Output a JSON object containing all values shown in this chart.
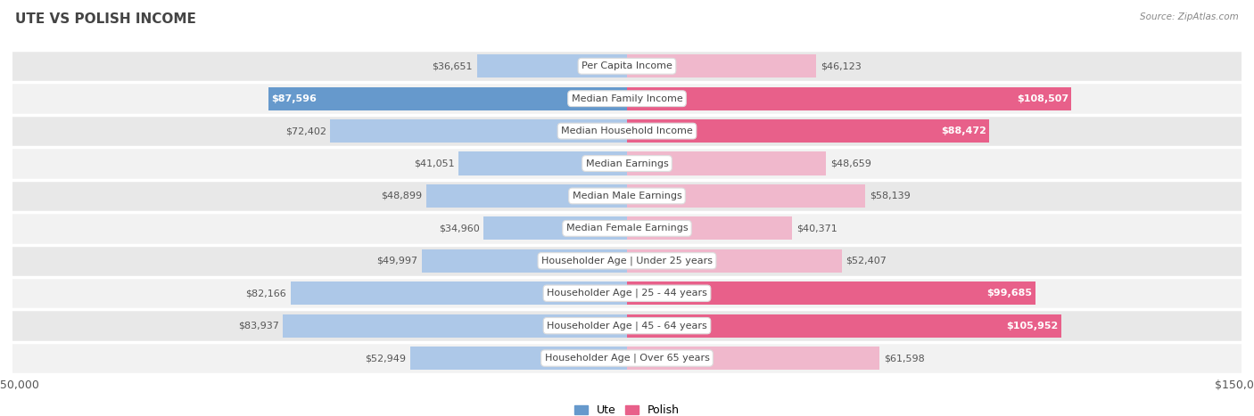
{
  "title": "UTE VS POLISH INCOME",
  "source": "Source: ZipAtlas.com",
  "categories": [
    "Per Capita Income",
    "Median Family Income",
    "Median Household Income",
    "Median Earnings",
    "Median Male Earnings",
    "Median Female Earnings",
    "Householder Age | Under 25 years",
    "Householder Age | 25 - 44 years",
    "Householder Age | 45 - 64 years",
    "Householder Age | Over 65 years"
  ],
  "ute_values": [
    36651,
    87596,
    72402,
    41051,
    48899,
    34960,
    49997,
    82166,
    83937,
    52949
  ],
  "polish_values": [
    46123,
    108507,
    88472,
    48659,
    58139,
    40371,
    52407,
    99685,
    105952,
    61598
  ],
  "ute_labels": [
    "$36,651",
    "$87,596",
    "$72,402",
    "$41,051",
    "$48,899",
    "$34,960",
    "$49,997",
    "$82,166",
    "$83,937",
    "$52,949"
  ],
  "polish_labels": [
    "$46,123",
    "$108,507",
    "$88,472",
    "$48,659",
    "$58,139",
    "$40,371",
    "$52,407",
    "$99,685",
    "$105,952",
    "$61,598"
  ],
  "ute_color_light": "#adc8e8",
  "ute_color_dark": "#6699cc",
  "polish_color_light": "#f0b8cc",
  "polish_color_dark": "#e8608a",
  "max_value": 150000,
  "row_bg_dark": "#e8e8e8",
  "row_bg_light": "#f2f2f2",
  "title_fontsize": 11,
  "label_fontsize": 8,
  "cat_fontsize": 8,
  "axis_label_fontsize": 9,
  "white_label_threshold": 0.58
}
